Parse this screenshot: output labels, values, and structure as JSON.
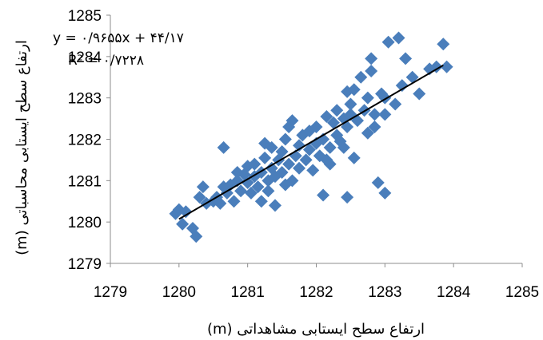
{
  "chart_data": {
    "type": "scatter",
    "title": "",
    "xlabel": "ارتفاع سطح ایستابی مشاهداتی (m)",
    "ylabel": "ارتفاع سطح ایستابی محاسباتی (m)",
    "xlim": [
      1279,
      1285
    ],
    "ylim": [
      1279,
      1285
    ],
    "x_ticks": [
      "1279",
      "1280",
      "1281",
      "1282",
      "1283",
      "1284",
      "1285"
    ],
    "y_ticks": [
      "1279",
      "1280",
      "1281",
      "1282",
      "1283",
      "1284",
      "1285"
    ],
    "grid": false,
    "marker_color": "#4a7ebb",
    "trendline_color": "#000000",
    "equation": "y = ۰/۹۶۵۵x + ۴۴/۱۷",
    "r2": "R² = ۰/۷۲۲۸",
    "trendline": {
      "x": [
        1280.0,
        1283.85
      ],
      "y": [
        1280.07,
        1283.79
      ]
    },
    "points": [
      [
        1279.95,
        1280.2
      ],
      [
        1280.0,
        1280.3
      ],
      [
        1280.05,
        1279.95
      ],
      [
        1280.1,
        1280.25
      ],
      [
        1280.2,
        1279.85
      ],
      [
        1280.25,
        1279.65
      ],
      [
        1280.3,
        1280.6
      ],
      [
        1280.35,
        1280.85
      ],
      [
        1280.4,
        1280.45
      ],
      [
        1280.5,
        1280.5
      ],
      [
        1280.55,
        1280.6
      ],
      [
        1280.6,
        1280.45
      ],
      [
        1280.65,
        1280.85
      ],
      [
        1280.65,
        1281.8
      ],
      [
        1280.7,
        1280.7
      ],
      [
        1280.75,
        1280.9
      ],
      [
        1280.8,
        1280.5
      ],
      [
        1280.85,
        1281.0
      ],
      [
        1280.85,
        1281.2
      ],
      [
        1280.9,
        1280.75
      ],
      [
        1280.95,
        1281.15
      ],
      [
        1281.0,
        1280.95
      ],
      [
        1281.0,
        1281.35
      ],
      [
        1281.05,
        1280.7
      ],
      [
        1281.1,
        1281.1
      ],
      [
        1281.1,
        1281.4
      ],
      [
        1281.15,
        1280.85
      ],
      [
        1281.2,
        1281.2
      ],
      [
        1281.2,
        1280.5
      ],
      [
        1281.25,
        1281.55
      ],
      [
        1281.25,
        1281.9
      ],
      [
        1281.3,
        1281.0
      ],
      [
        1281.3,
        1280.75
      ],
      [
        1281.35,
        1281.3
      ],
      [
        1281.35,
        1281.8
      ],
      [
        1281.4,
        1281.1
      ],
      [
        1281.4,
        1280.4
      ],
      [
        1281.45,
        1281.5
      ],
      [
        1281.5,
        1281.2
      ],
      [
        1281.5,
        1281.7
      ],
      [
        1281.55,
        1282.0
      ],
      [
        1281.55,
        1280.9
      ],
      [
        1281.6,
        1282.3
      ],
      [
        1281.6,
        1281.4
      ],
      [
        1281.65,
        1282.45
      ],
      [
        1281.65,
        1281.0
      ],
      [
        1281.7,
        1281.6
      ],
      [
        1281.75,
        1281.85
      ],
      [
        1281.75,
        1281.3
      ],
      [
        1281.8,
        1282.1
      ],
      [
        1281.85,
        1281.5
      ],
      [
        1281.9,
        1281.75
      ],
      [
        1281.9,
        1282.2
      ],
      [
        1281.95,
        1281.25
      ],
      [
        1282.0,
        1281.9
      ],
      [
        1282.0,
        1282.3
      ],
      [
        1282.05,
        1281.6
      ],
      [
        1282.1,
        1282.0
      ],
      [
        1282.1,
        1280.65
      ],
      [
        1282.15,
        1282.55
      ],
      [
        1282.15,
        1281.5
      ],
      [
        1282.2,
        1281.8
      ],
      [
        1282.2,
        1281.4
      ],
      [
        1282.25,
        1282.4
      ],
      [
        1282.3,
        1282.1
      ],
      [
        1282.3,
        1282.7
      ],
      [
        1282.35,
        1281.95
      ],
      [
        1282.4,
        1282.5
      ],
      [
        1282.4,
        1281.8
      ],
      [
        1282.45,
        1282.3
      ],
      [
        1282.45,
        1283.15
      ],
      [
        1282.5,
        1282.85
      ],
      [
        1282.5,
        1282.6
      ],
      [
        1282.55,
        1283.2
      ],
      [
        1282.55,
        1281.55
      ],
      [
        1282.6,
        1282.45
      ],
      [
        1282.65,
        1283.5
      ],
      [
        1282.7,
        1282.7
      ],
      [
        1282.75,
        1283.0
      ],
      [
        1282.75,
        1282.15
      ],
      [
        1282.8,
        1283.65
      ],
      [
        1282.8,
        1283.95
      ],
      [
        1282.85,
        1282.3
      ],
      [
        1282.85,
        1282.6
      ],
      [
        1282.9,
        1280.95
      ],
      [
        1282.95,
        1283.1
      ],
      [
        1283.0,
        1282.6
      ],
      [
        1283.0,
        1283.0
      ],
      [
        1283.0,
        1280.7
      ],
      [
        1283.05,
        1284.35
      ],
      [
        1283.15,
        1282.85
      ],
      [
        1283.2,
        1284.45
      ],
      [
        1283.25,
        1283.3
      ],
      [
        1283.3,
        1283.95
      ],
      [
        1283.4,
        1283.5
      ],
      [
        1283.5,
        1283.1
      ],
      [
        1283.65,
        1283.7
      ],
      [
        1283.75,
        1283.75
      ],
      [
        1283.85,
        1284.3
      ],
      [
        1283.9,
        1283.75
      ],
      [
        1282.45,
        1280.6
      ]
    ]
  }
}
